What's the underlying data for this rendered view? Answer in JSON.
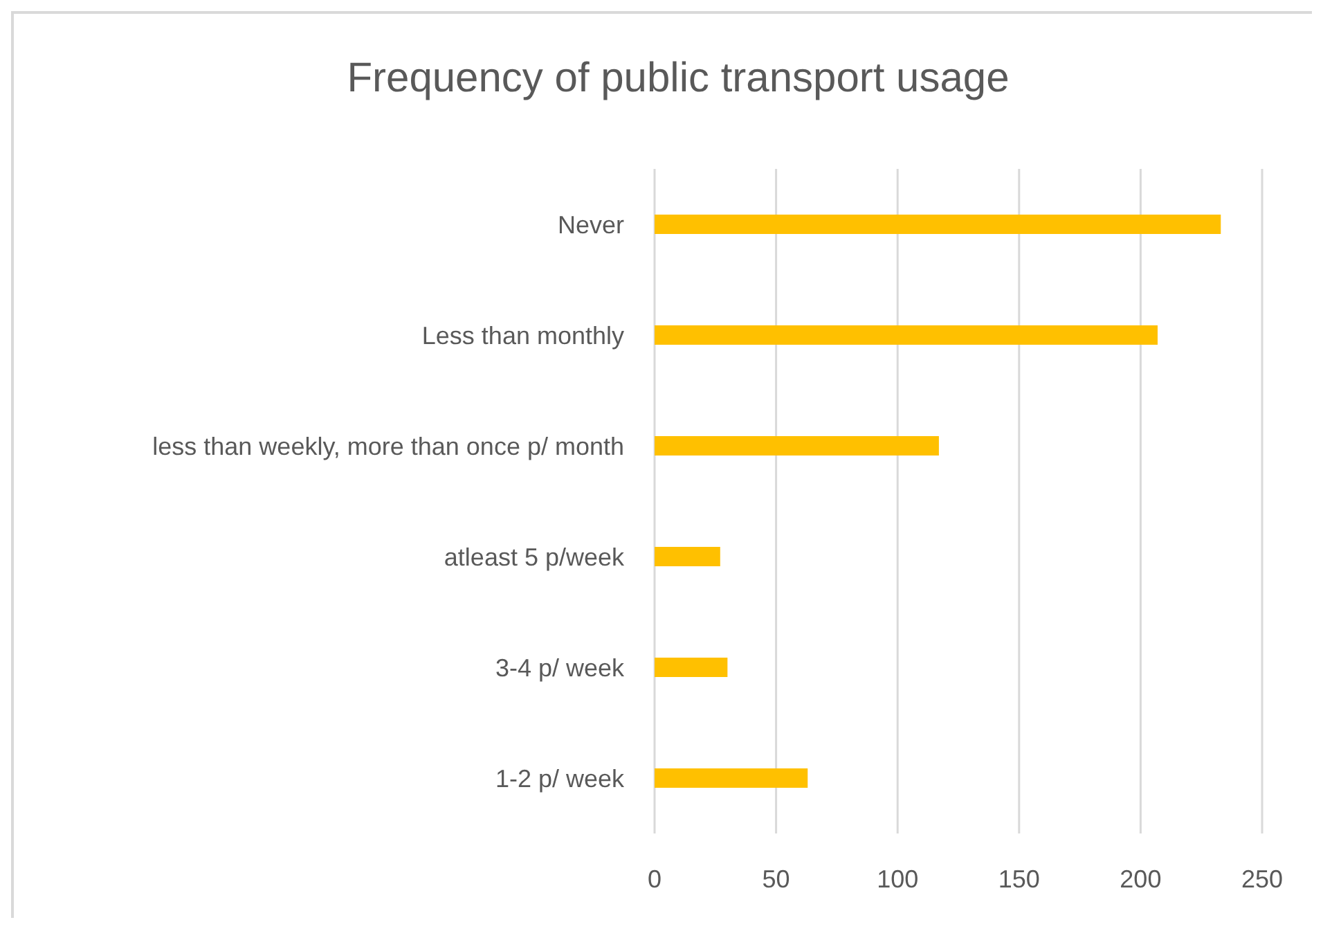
{
  "chart_data": {
    "type": "bar",
    "orientation": "horizontal",
    "title": "Frequency of public transport usage",
    "categories": [
      "Never",
      "Less than monthly",
      "less than weekly, more than once p/ month",
      "atleast 5 p/week",
      "3-4 p/ week",
      "1-2 p/ week"
    ],
    "values": [
      233,
      207,
      117,
      27,
      30,
      63
    ],
    "color": "#ffc000",
    "xlim": [
      0,
      250
    ],
    "xticks": [
      0,
      50,
      100,
      150,
      200,
      250
    ],
    "grid": "x"
  }
}
